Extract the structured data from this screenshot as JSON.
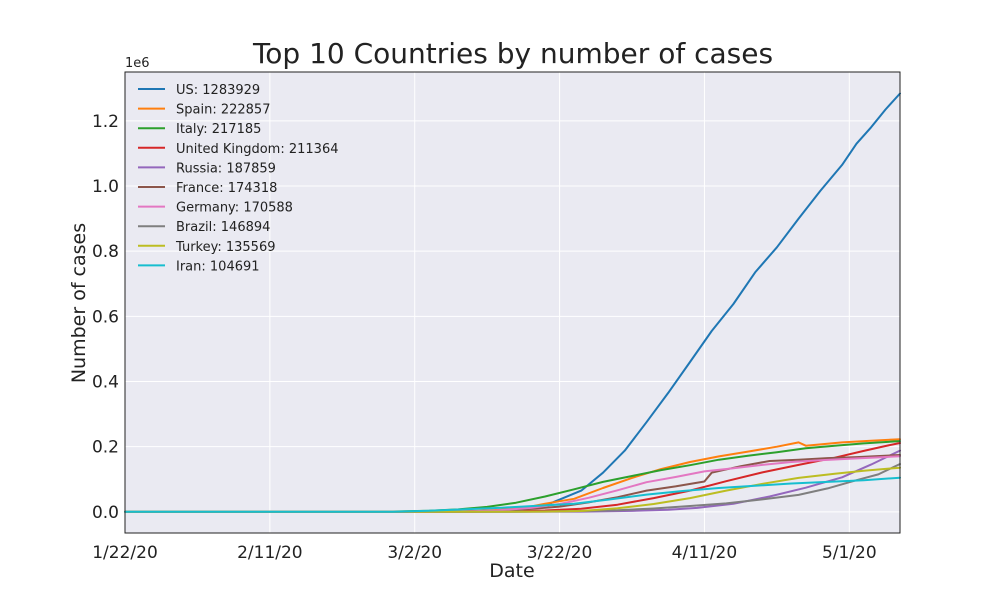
{
  "chart_data": {
    "type": "line",
    "title": "Top 10 Countries by number of cases",
    "xlabel": "Date",
    "ylabel": "Number of cases",
    "y_offset_label": "1e6",
    "x_start": "2020-01-22",
    "x_end": "2020-05-08",
    "xlim": [
      "2020-01-22",
      "2020-05-08"
    ],
    "ylim": [
      -65000,
      1350000
    ],
    "x_ticks": [
      {
        "date": "2020-01-22",
        "label": "1/22/20"
      },
      {
        "date": "2020-02-11",
        "label": "2/11/20"
      },
      {
        "date": "2020-03-02",
        "label": "3/2/20"
      },
      {
        "date": "2020-03-22",
        "label": "3/22/20"
      },
      {
        "date": "2020-04-11",
        "label": "4/11/20"
      },
      {
        "date": "2020-05-01",
        "label": "5/1/20"
      }
    ],
    "y_ticks": [
      {
        "value": 0,
        "label": "0.0"
      },
      {
        "value": 200000,
        "label": "0.2"
      },
      {
        "value": 400000,
        "label": "0.4"
      },
      {
        "value": 600000,
        "label": "0.6"
      },
      {
        "value": 800000,
        "label": "0.8"
      },
      {
        "value": 1000000,
        "label": "1.0"
      },
      {
        "value": 1200000,
        "label": "1.2"
      }
    ],
    "grid": true,
    "legend_position": "top-left",
    "series": [
      {
        "name": "US: 1283929",
        "color": "#1f77b4",
        "points": [
          [
            "2020-01-22",
            0
          ],
          [
            "2020-03-01",
            50
          ],
          [
            "2020-03-10",
            1000
          ],
          [
            "2020-03-15",
            3500
          ],
          [
            "2020-03-20",
            19000
          ],
          [
            "2020-03-25",
            65000
          ],
          [
            "2020-03-28",
            120000
          ],
          [
            "2020-03-31",
            188000
          ],
          [
            "2020-04-03",
            275000
          ],
          [
            "2020-04-06",
            365000
          ],
          [
            "2020-04-09",
            460000
          ],
          [
            "2020-04-12",
            555000
          ],
          [
            "2020-04-15",
            638000
          ],
          [
            "2020-04-18",
            735000
          ],
          [
            "2020-04-21",
            812000
          ],
          [
            "2020-04-24",
            900000
          ],
          [
            "2020-04-27",
            985000
          ],
          [
            "2020-04-30",
            1065000
          ],
          [
            "2020-05-02",
            1130000
          ],
          [
            "2020-05-04",
            1180000
          ],
          [
            "2020-05-06",
            1235000
          ],
          [
            "2020-05-08",
            1283929
          ]
        ]
      },
      {
        "name": "Spain: 222857",
        "color": "#ff7f0e",
        "points": [
          [
            "2020-01-22",
            0
          ],
          [
            "2020-03-01",
            80
          ],
          [
            "2020-03-08",
            600
          ],
          [
            "2020-03-13",
            5200
          ],
          [
            "2020-03-17",
            11800
          ],
          [
            "2020-03-20",
            25000
          ],
          [
            "2020-03-24",
            40000
          ],
          [
            "2020-03-28",
            73000
          ],
          [
            "2020-04-01",
            104000
          ],
          [
            "2020-04-05",
            131000
          ],
          [
            "2020-04-09",
            153000
          ],
          [
            "2020-04-13",
            170000
          ],
          [
            "2020-04-17",
            185000
          ],
          [
            "2020-04-21",
            200000
          ],
          [
            "2020-04-24",
            213000
          ],
          [
            "2020-04-25",
            203000
          ],
          [
            "2020-04-30",
            213000
          ],
          [
            "2020-05-04",
            218000
          ],
          [
            "2020-05-08",
            222857
          ]
        ]
      },
      {
        "name": "Italy: 217185",
        "color": "#2ca02c",
        "points": [
          [
            "2020-01-22",
            0
          ],
          [
            "2020-02-21",
            20
          ],
          [
            "2020-02-28",
            900
          ],
          [
            "2020-03-04",
            3100
          ],
          [
            "2020-03-08",
            7400
          ],
          [
            "2020-03-12",
            15000
          ],
          [
            "2020-03-16",
            28000
          ],
          [
            "2020-03-20",
            47000
          ],
          [
            "2020-03-24",
            69000
          ],
          [
            "2020-03-28",
            92000
          ],
          [
            "2020-04-01",
            110000
          ],
          [
            "2020-04-05",
            128000
          ],
          [
            "2020-04-09",
            143000
          ],
          [
            "2020-04-13",
            160000
          ],
          [
            "2020-04-17",
            172000
          ],
          [
            "2020-04-21",
            183000
          ],
          [
            "2020-04-25",
            195000
          ],
          [
            "2020-04-29",
            203000
          ],
          [
            "2020-05-03",
            210000
          ],
          [
            "2020-05-08",
            217185
          ]
        ]
      },
      {
        "name": "United Kingdom: 211364",
        "color": "#d62728",
        "points": [
          [
            "2020-01-22",
            0
          ],
          [
            "2020-03-01",
            30
          ],
          [
            "2020-03-10",
            400
          ],
          [
            "2020-03-15",
            1400
          ],
          [
            "2020-03-20",
            4000
          ],
          [
            "2020-03-25",
            9600
          ],
          [
            "2020-03-30",
            22000
          ],
          [
            "2020-04-04",
            42000
          ],
          [
            "2020-04-09",
            65000
          ],
          [
            "2020-04-14",
            94000
          ],
          [
            "2020-04-19",
            121000
          ],
          [
            "2020-04-24",
            144000
          ],
          [
            "2020-04-29",
            166000
          ],
          [
            "2020-05-03",
            187000
          ],
          [
            "2020-05-06",
            202000
          ],
          [
            "2020-05-08",
            211364
          ]
        ]
      },
      {
        "name": "Russia: 187859",
        "color": "#9467bd",
        "points": [
          [
            "2020-01-22",
            0
          ],
          [
            "2020-03-15",
            60
          ],
          [
            "2020-03-25",
            650
          ],
          [
            "2020-04-01",
            2800
          ],
          [
            "2020-04-06",
            6300
          ],
          [
            "2020-04-10",
            11900
          ],
          [
            "2020-04-15",
            24500
          ],
          [
            "2020-04-20",
            47000
          ],
          [
            "2020-04-25",
            74000
          ],
          [
            "2020-04-30",
            106000
          ],
          [
            "2020-05-04",
            145000
          ],
          [
            "2020-05-08",
            187859
          ]
        ]
      },
      {
        "name": "France: 174318",
        "color": "#8c564b",
        "points": [
          [
            "2020-01-22",
            0
          ],
          [
            "2020-03-01",
            130
          ],
          [
            "2020-03-08",
            1100
          ],
          [
            "2020-03-13",
            3700
          ],
          [
            "2020-03-18",
            9100
          ],
          [
            "2020-03-22",
            16000
          ],
          [
            "2020-03-26",
            29000
          ],
          [
            "2020-03-30",
            45000
          ],
          [
            "2020-04-03",
            65000
          ],
          [
            "2020-04-07",
            78000
          ],
          [
            "2020-04-11",
            93000
          ],
          [
            "2020-04-12",
            120000
          ],
          [
            "2020-04-16",
            140000
          ],
          [
            "2020-04-20",
            156000
          ],
          [
            "2020-04-24",
            160000
          ],
          [
            "2020-04-28",
            165000
          ],
          [
            "2020-05-02",
            168000
          ],
          [
            "2020-05-08",
            174318
          ]
        ]
      },
      {
        "name": "Germany: 170588",
        "color": "#e377c2",
        "points": [
          [
            "2020-01-22",
            0
          ],
          [
            "2020-03-01",
            130
          ],
          [
            "2020-03-08",
            1000
          ],
          [
            "2020-03-13",
            3700
          ],
          [
            "2020-03-18",
            12000
          ],
          [
            "2020-03-22",
            24000
          ],
          [
            "2020-03-26",
            43000
          ],
          [
            "2020-03-30",
            66000
          ],
          [
            "2020-04-03",
            91000
          ],
          [
            "2020-04-07",
            107000
          ],
          [
            "2020-04-11",
            124000
          ],
          [
            "2020-04-15",
            134000
          ],
          [
            "2020-04-19",
            144000
          ],
          [
            "2020-04-23",
            153000
          ],
          [
            "2020-04-27",
            158000
          ],
          [
            "2020-05-01",
            163000
          ],
          [
            "2020-05-05",
            167000
          ],
          [
            "2020-05-08",
            170588
          ]
        ]
      },
      {
        "name": "Brazil: 146894",
        "color": "#7f7f7f",
        "points": [
          [
            "2020-01-22",
            0
          ],
          [
            "2020-03-15",
            200
          ],
          [
            "2020-03-25",
            2400
          ],
          [
            "2020-03-30",
            4600
          ],
          [
            "2020-04-04",
            10300
          ],
          [
            "2020-04-09",
            18000
          ],
          [
            "2020-04-14",
            26000
          ],
          [
            "2020-04-19",
            38000
          ],
          [
            "2020-04-24",
            52000
          ],
          [
            "2020-04-28",
            72000
          ],
          [
            "2020-05-02",
            97000
          ],
          [
            "2020-05-05",
            115000
          ],
          [
            "2020-05-08",
            146894
          ]
        ]
      },
      {
        "name": "Turkey: 135569",
        "color": "#bcbd22",
        "points": [
          [
            "2020-01-22",
            0
          ],
          [
            "2020-03-15",
            50
          ],
          [
            "2020-03-20",
            670
          ],
          [
            "2020-03-25",
            2400
          ],
          [
            "2020-03-30",
            10800
          ],
          [
            "2020-04-04",
            23900
          ],
          [
            "2020-04-09",
            42000
          ],
          [
            "2020-04-14",
            65000
          ],
          [
            "2020-04-19",
            86000
          ],
          [
            "2020-04-24",
            104000
          ],
          [
            "2020-04-29",
            117000
          ],
          [
            "2020-05-03",
            126000
          ],
          [
            "2020-05-08",
            135569
          ]
        ]
      },
      {
        "name": "Iran: 104691",
        "color": "#17becf",
        "points": [
          [
            "2020-01-22",
            0
          ],
          [
            "2020-02-20",
            5
          ],
          [
            "2020-02-28",
            400
          ],
          [
            "2020-03-04",
            3500
          ],
          [
            "2020-03-09",
            8000
          ],
          [
            "2020-03-14",
            12700
          ],
          [
            "2020-03-19",
            18400
          ],
          [
            "2020-03-24",
            25000
          ],
          [
            "2020-03-29",
            38000
          ],
          [
            "2020-04-03",
            53000
          ],
          [
            "2020-04-08",
            64000
          ],
          [
            "2020-04-13",
            73000
          ],
          [
            "2020-04-18",
            80000
          ],
          [
            "2020-04-23",
            87000
          ],
          [
            "2020-04-28",
            92000
          ],
          [
            "2020-05-03",
            97000
          ],
          [
            "2020-05-08",
            104691
          ]
        ]
      }
    ]
  }
}
